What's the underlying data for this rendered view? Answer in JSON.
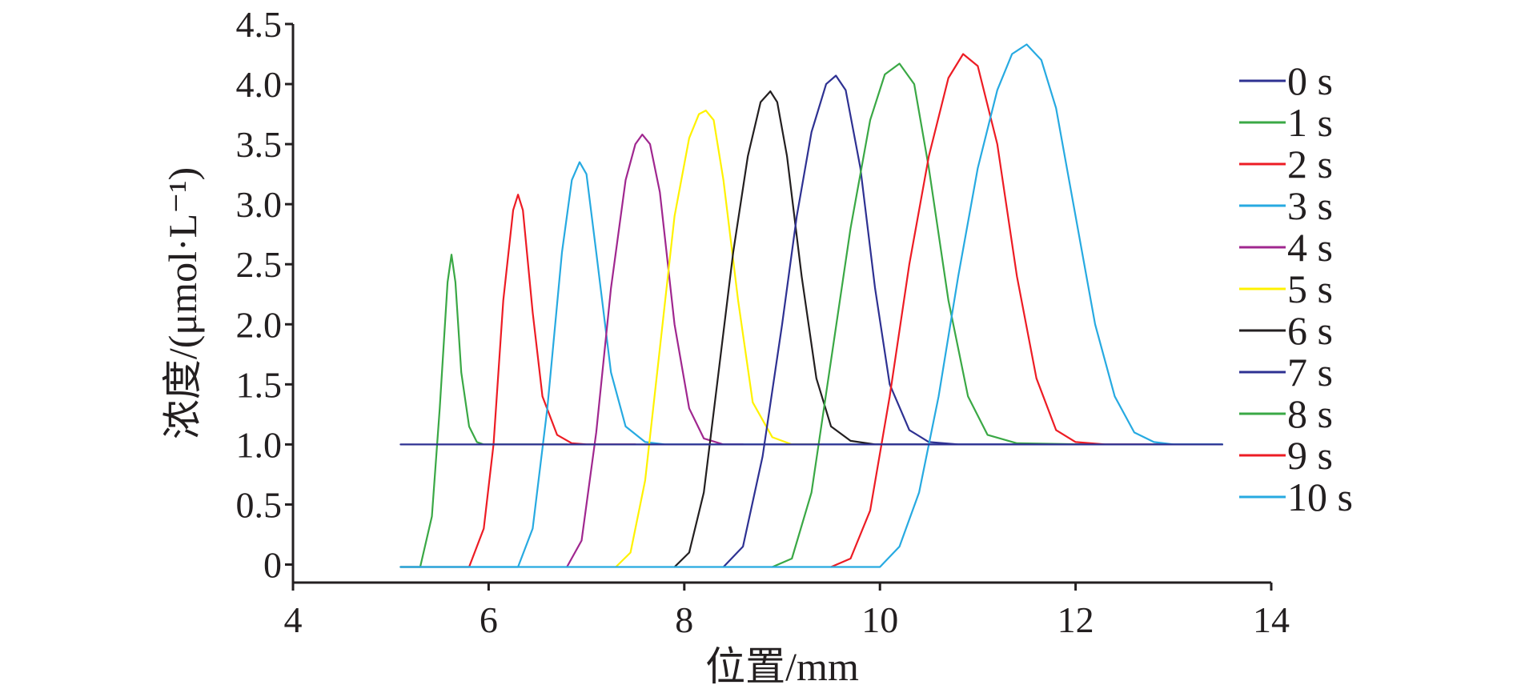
{
  "chart_data": {
    "type": "line",
    "title": "",
    "xlabel": "位置/mm",
    "ylabel": "浓度/(μmol·L⁻¹)",
    "xlim": [
      4,
      14
    ],
    "ylim": [
      -0.15,
      4.5
    ],
    "xticks": [
      "4",
      "6",
      "8",
      "10",
      "12",
      "14"
    ],
    "yticks": [
      "0",
      "0.5",
      "1.0",
      "1.5",
      "2.0",
      "2.5",
      "3.0",
      "3.5",
      "4.0",
      "4.5"
    ],
    "xtick_values": [
      4,
      6,
      8,
      10,
      12,
      14
    ],
    "ytick_values": [
      0,
      0.5,
      1.0,
      1.5,
      2.0,
      2.5,
      3.0,
      3.5,
      4.0,
      4.5
    ],
    "grid": false,
    "legend_position": "right",
    "series": [
      {
        "name": "0 s",
        "color": "#2e3192",
        "x": [
          5.1,
          13.5
        ],
        "y": [
          1.0,
          1.0
        ]
      },
      {
        "name": "1 s",
        "color": "#3aa845",
        "x": [
          5.1,
          5.3,
          5.42,
          5.5,
          5.58,
          5.62,
          5.66,
          5.72,
          5.8,
          5.88,
          5.95,
          6.1,
          6.8
        ],
        "y": [
          -0.02,
          -0.02,
          0.4,
          1.3,
          2.35,
          2.58,
          2.35,
          1.6,
          1.15,
          1.02,
          1.0,
          1.0,
          1.0
        ]
      },
      {
        "name": "2 s",
        "color": "#ed1c24",
        "x": [
          5.1,
          5.8,
          5.95,
          6.05,
          6.15,
          6.25,
          6.3,
          6.35,
          6.45,
          6.55,
          6.7,
          6.85,
          7.0,
          7.5
        ],
        "y": [
          -0.02,
          -0.02,
          0.3,
          1.0,
          2.2,
          2.95,
          3.08,
          2.95,
          2.1,
          1.4,
          1.08,
          1.01,
          1.0,
          1.0
        ]
      },
      {
        "name": "3 s",
        "color": "#27aae1",
        "x": [
          5.1,
          6.3,
          6.45,
          6.6,
          6.75,
          6.85,
          6.93,
          7.0,
          7.1,
          7.25,
          7.4,
          7.6,
          7.8,
          13.5
        ],
        "y": [
          -0.02,
          -0.02,
          0.3,
          1.3,
          2.6,
          3.2,
          3.35,
          3.25,
          2.6,
          1.6,
          1.15,
          1.02,
          1.0,
          1.0
        ]
      },
      {
        "name": "4 s",
        "color": "#a0278f",
        "x": [
          6.8,
          6.95,
          7.1,
          7.25,
          7.4,
          7.5,
          7.57,
          7.65,
          7.75,
          7.9,
          8.05,
          8.2,
          8.4,
          8.6
        ],
        "y": [
          -0.02,
          0.2,
          1.1,
          2.3,
          3.2,
          3.5,
          3.58,
          3.5,
          3.1,
          2.0,
          1.3,
          1.05,
          1.0,
          1.0
        ]
      },
      {
        "name": "5 s",
        "color": "#fff200",
        "x": [
          7.3,
          7.45,
          7.6,
          7.75,
          7.9,
          8.05,
          8.15,
          8.22,
          8.3,
          8.4,
          8.55,
          8.7,
          8.9,
          9.1,
          9.4
        ],
        "y": [
          -0.02,
          0.1,
          0.7,
          1.8,
          2.9,
          3.55,
          3.75,
          3.78,
          3.7,
          3.2,
          2.2,
          1.35,
          1.06,
          1.0,
          1.0
        ]
      },
      {
        "name": "6 s",
        "color": "#231f20",
        "x": [
          7.9,
          8.05,
          8.2,
          8.35,
          8.5,
          8.65,
          8.78,
          8.88,
          8.95,
          9.05,
          9.2,
          9.35,
          9.5,
          9.7,
          9.95,
          10.5
        ],
        "y": [
          -0.02,
          0.1,
          0.6,
          1.6,
          2.6,
          3.4,
          3.85,
          3.94,
          3.85,
          3.4,
          2.4,
          1.55,
          1.15,
          1.03,
          1.0,
          1.0
        ]
      },
      {
        "name": "7 s",
        "color": "#2e3192",
        "x": [
          8.4,
          8.6,
          8.8,
          9.0,
          9.15,
          9.3,
          9.45,
          9.55,
          9.65,
          9.8,
          9.95,
          10.1,
          10.3,
          10.5,
          10.8,
          11.4
        ],
        "y": [
          -0.02,
          0.15,
          0.9,
          2.0,
          2.9,
          3.6,
          4.0,
          4.07,
          3.95,
          3.3,
          2.3,
          1.5,
          1.12,
          1.02,
          1.0,
          1.0
        ]
      },
      {
        "name": "8 s",
        "color": "#3aa845",
        "x": [
          8.9,
          9.1,
          9.3,
          9.5,
          9.7,
          9.9,
          10.05,
          10.2,
          10.35,
          10.5,
          10.7,
          10.9,
          11.1,
          11.4,
          12.1
        ],
        "y": [
          -0.02,
          0.05,
          0.6,
          1.7,
          2.8,
          3.7,
          4.08,
          4.17,
          4.0,
          3.3,
          2.2,
          1.4,
          1.08,
          1.01,
          1.0
        ]
      },
      {
        "name": "9 s",
        "color": "#ed1c24",
        "x": [
          9.5,
          9.7,
          9.9,
          10.1,
          10.3,
          10.5,
          10.7,
          10.85,
          11.0,
          11.2,
          11.4,
          11.6,
          11.8,
          12.0,
          12.3,
          12.9
        ],
        "y": [
          -0.02,
          0.05,
          0.45,
          1.4,
          2.5,
          3.4,
          4.05,
          4.25,
          4.15,
          3.5,
          2.4,
          1.55,
          1.12,
          1.02,
          1.0,
          1.0
        ]
      },
      {
        "name": "10 s",
        "color": "#27aae1",
        "x": [
          5.1,
          10.0,
          10.2,
          10.4,
          10.6,
          10.8,
          11.0,
          11.2,
          11.35,
          11.5,
          11.65,
          11.8,
          12.0,
          12.2,
          12.4,
          12.6,
          12.8,
          13.0,
          13.5
        ],
        "y": [
          -0.02,
          -0.02,
          0.15,
          0.6,
          1.4,
          2.4,
          3.3,
          3.95,
          4.25,
          4.33,
          4.2,
          3.8,
          2.9,
          2.0,
          1.4,
          1.1,
          1.02,
          1.0,
          1.0
        ]
      }
    ]
  }
}
